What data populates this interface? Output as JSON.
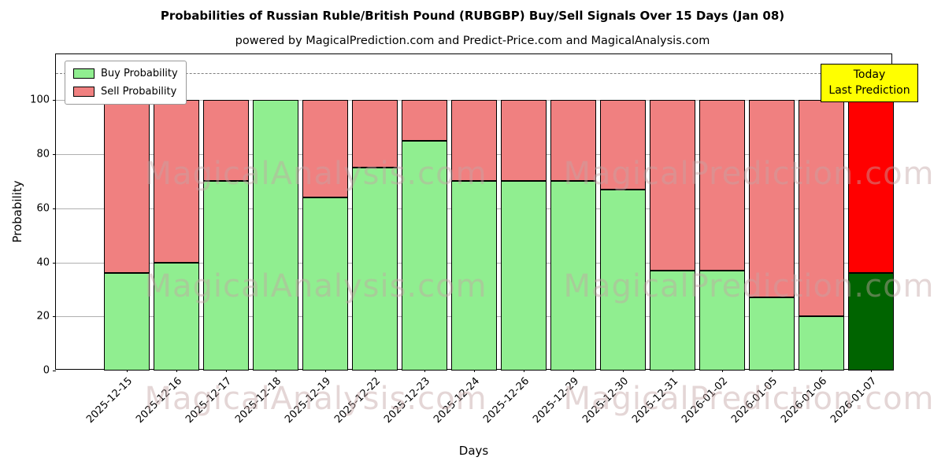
{
  "chart_data": {
    "type": "bar",
    "stacked": true,
    "title": "Probabilities of Russian Ruble/British Pound (RUBGBP) Buy/Sell Signals Over 15 Days (Jan 08)",
    "subtitle": "powered by MagicalPrediction.com and Predict-Price.com and MagicalAnalysis.com",
    "xlabel": "Days",
    "ylabel": "Probability",
    "categories": [
      "2025-12-15",
      "2025-12-16",
      "2025-12-17",
      "2025-12-18",
      "2025-12-19",
      "2025-12-22",
      "2025-12-23",
      "2025-12-24",
      "2025-12-26",
      "2025-12-29",
      "2025-12-30",
      "2025-12-31",
      "2026-01-02",
      "2026-01-05",
      "2026-01-06",
      "2026-01-07"
    ],
    "series": [
      {
        "name": "Buy Probability",
        "color": "#90ee90",
        "values": [
          36,
          40,
          70,
          100,
          64,
          75,
          85,
          70,
          70,
          70,
          67,
          37,
          37,
          27,
          20,
          36
        ]
      },
      {
        "name": "Sell Probability",
        "color": "#f08080",
        "values": [
          64,
          60,
          30,
          0,
          36,
          25,
          15,
          30,
          30,
          30,
          33,
          63,
          63,
          73,
          80,
          64
        ]
      }
    ],
    "today_colors": {
      "buy": "#006400",
      "sell": "#ff0000"
    },
    "bar_edge_color": "#000000",
    "ylim": [
      0,
      117
    ],
    "yticks": [
      0,
      20,
      40,
      60,
      80,
      100
    ],
    "dashed_line_y": 110,
    "grid": true,
    "legend_position": "upper left",
    "annotation_box": {
      "lines": [
        "Today",
        "Last Prediction"
      ],
      "bg": "#ffff00"
    },
    "watermarks": [
      "MagicalAnalysis.com",
      "MagicalPrediction.com"
    ]
  }
}
